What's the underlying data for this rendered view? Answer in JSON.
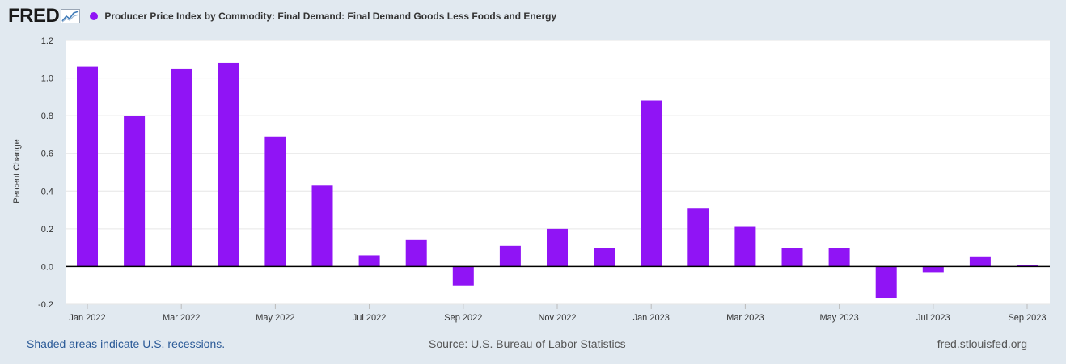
{
  "header": {
    "logo_text": "FRED",
    "logo_icon": "line-graph-icon",
    "series_title": "Producer Price Index by Commodity: Final Demand: Final Demand Goods Less Foods and Energy"
  },
  "colors": {
    "series": "#9014f5",
    "background": "#e1e9f0",
    "plot_bg": "#ffffff"
  },
  "chart_data": {
    "type": "bar",
    "title": "Producer Price Index by Commodity: Final Demand: Final Demand Goods Less Foods and Energy",
    "xlabel": "",
    "ylabel": "Percent Change",
    "ylim": [
      -0.2,
      1.2
    ],
    "yticks": [
      "1.2",
      "1.0",
      "0.8",
      "0.6",
      "0.4",
      "0.2",
      "0.0",
      "-0.2"
    ],
    "ytick_values": [
      1.2,
      1.0,
      0.8,
      0.6,
      0.4,
      0.2,
      0.0,
      -0.2
    ],
    "grid": true,
    "categories": [
      "2022-01",
      "2022-02",
      "2022-03",
      "2022-04",
      "2022-05",
      "2022-06",
      "2022-07",
      "2022-08",
      "2022-09",
      "2022-10",
      "2022-11",
      "2022-12",
      "2023-01",
      "2023-02",
      "2023-03",
      "2023-04",
      "2023-05",
      "2023-06",
      "2023-07",
      "2023-08",
      "2023-09"
    ],
    "values": [
      1.06,
      0.8,
      1.05,
      1.08,
      0.69,
      0.43,
      0.06,
      0.14,
      -0.1,
      0.11,
      0.2,
      0.1,
      0.88,
      0.31,
      0.21,
      0.1,
      0.1,
      -0.17,
      -0.03,
      0.05,
      0.01
    ],
    "xticks": [
      "Jan 2022",
      "Mar 2022",
      "May 2022",
      "Jul 2022",
      "Sep 2022",
      "Nov 2022",
      "Jan 2023",
      "Mar 2023",
      "May 2023",
      "Jul 2023",
      "Sep 2023"
    ],
    "xtick_indices": [
      0,
      2,
      4,
      6,
      8,
      10,
      12,
      14,
      16,
      18,
      20
    ]
  },
  "footer": {
    "recession_note": "Shaded areas indicate U.S. recessions.",
    "source": "Source: U.S. Bureau of Labor Statistics",
    "site": "fred.stlouisfed.org"
  }
}
